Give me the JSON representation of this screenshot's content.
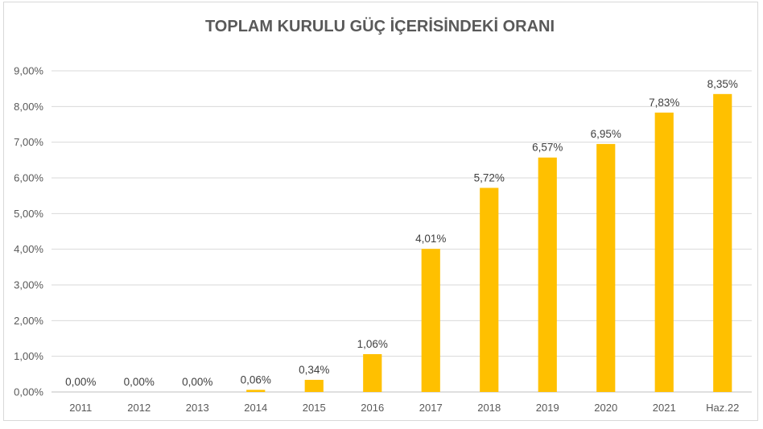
{
  "chart_data": {
    "type": "bar",
    "title": "TOPLAM KURULU GÜÇ İÇERİSİNDEKİ ORANI",
    "categories": [
      "2011",
      "2012",
      "2013",
      "2014",
      "2015",
      "2016",
      "2017",
      "2018",
      "2019",
      "2020",
      "2021",
      "Haz.22"
    ],
    "values": [
      0.0,
      0.0,
      0.0,
      0.06,
      0.34,
      1.06,
      4.01,
      5.72,
      6.57,
      6.95,
      7.83,
      8.35
    ],
    "data_labels": [
      "0,00%",
      "0,00%",
      "0,00%",
      "0,06%",
      "0,34%",
      "1,06%",
      "4,01%",
      "5,72%",
      "6,57%",
      "6,95%",
      "7,83%",
      "8,35%"
    ],
    "y_ticks": [
      0,
      1,
      2,
      3,
      4,
      5,
      6,
      7,
      8,
      9
    ],
    "y_tick_labels": [
      "0,00%",
      "1,00%",
      "2,00%",
      "3,00%",
      "4,00%",
      "5,00%",
      "6,00%",
      "7,00%",
      "8,00%",
      "9,00%"
    ],
    "ylim": [
      0,
      9
    ],
    "grid": true,
    "legend": "none",
    "bar_color": "#FFC000"
  }
}
